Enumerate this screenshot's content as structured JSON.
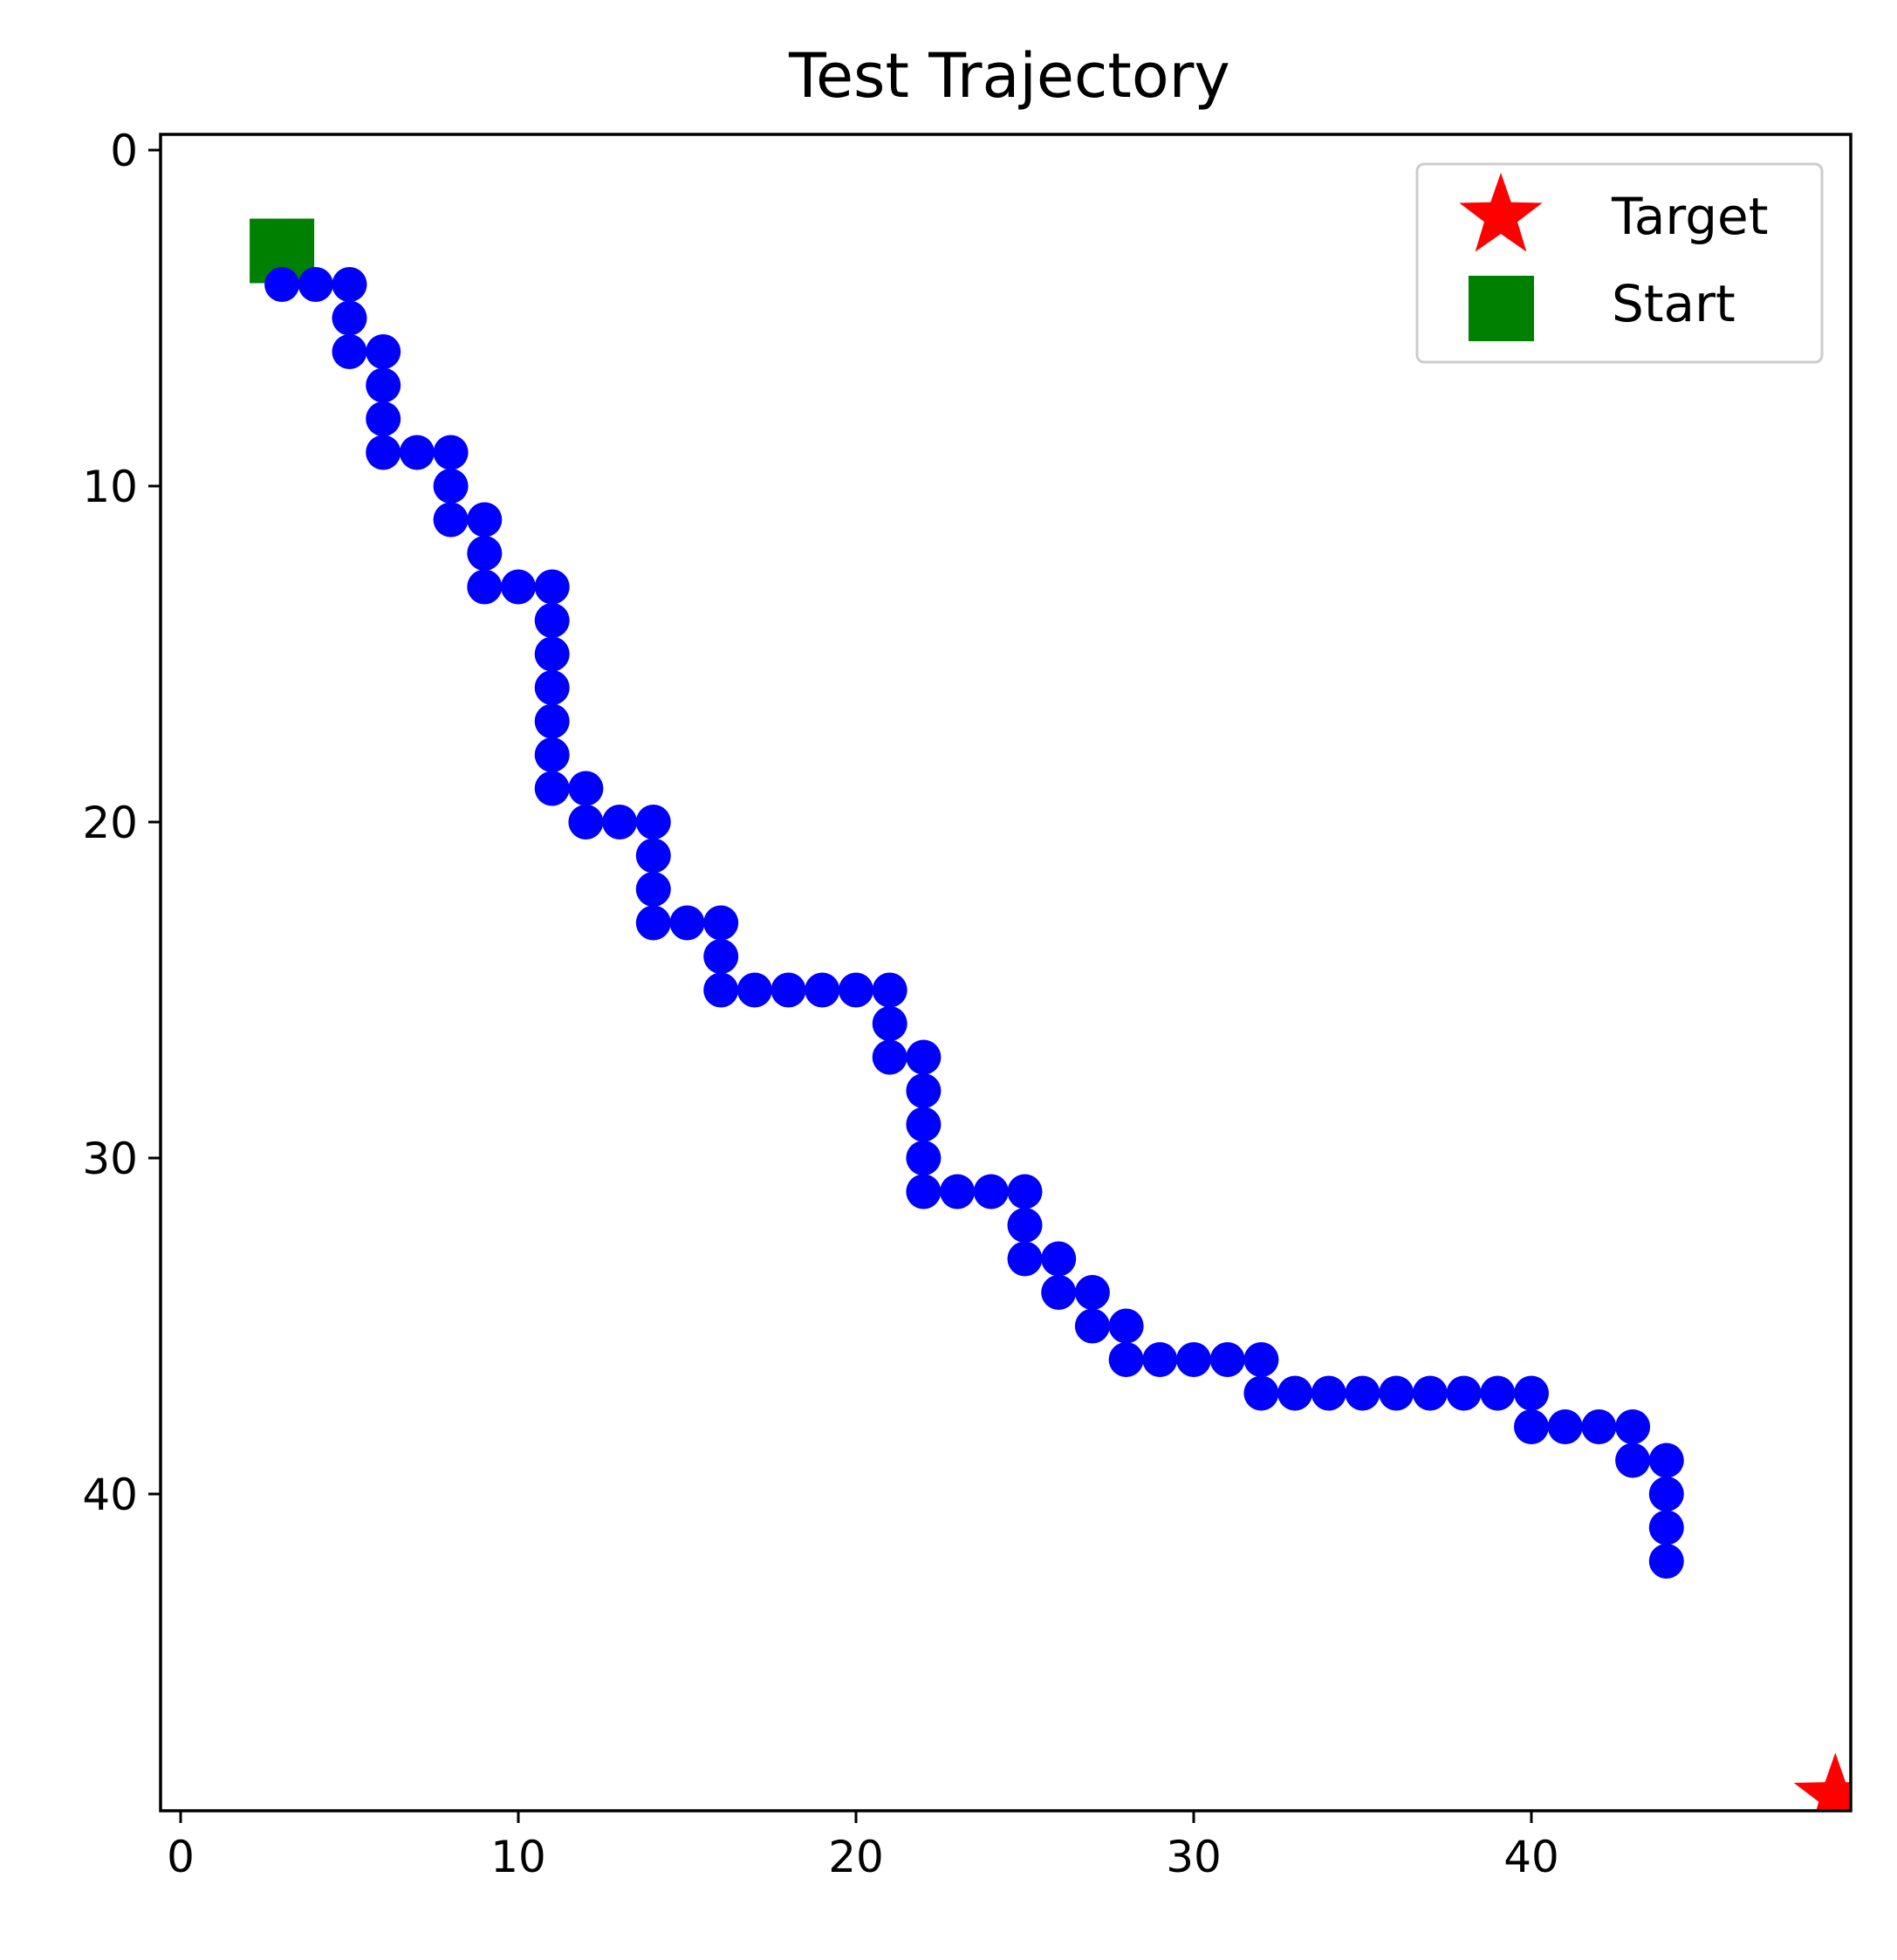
{
  "chart_data": {
    "type": "scatter",
    "title": "Test Trajectory",
    "xlabel": "",
    "ylabel": "",
    "xlim": [
      -0.5,
      49.5
    ],
    "ylim": [
      49.5,
      -0.5
    ],
    "y_inverted": true,
    "grid": false,
    "x_ticks": [
      0,
      10,
      20,
      30,
      40
    ],
    "y_ticks": [
      0,
      10,
      20,
      30,
      40
    ],
    "legend_position": "top-right",
    "series": [
      {
        "marker": "circle",
        "color": "#0000ff",
        "x": [
          3,
          4,
          5,
          5,
          5,
          6,
          6,
          6,
          6,
          7,
          8,
          8,
          8,
          9,
          9,
          9,
          10,
          11,
          11,
          11,
          11,
          11,
          11,
          11,
          12,
          12,
          13,
          14,
          14,
          14,
          14,
          15,
          16,
          16,
          16,
          17,
          18,
          19,
          20,
          21,
          21,
          21,
          22,
          22,
          22,
          22,
          22,
          23,
          24,
          25,
          25,
          25,
          26,
          26,
          27,
          27,
          28,
          28,
          29,
          30,
          31,
          32,
          32,
          33,
          34,
          35,
          36,
          37,
          38,
          39,
          40,
          40,
          41,
          42,
          43,
          43,
          44,
          44,
          44,
          44
        ],
        "y": [
          4,
          4,
          4,
          5,
          6,
          6,
          7,
          8,
          9,
          9,
          9,
          10,
          11,
          11,
          12,
          13,
          13,
          13,
          14,
          15,
          16,
          17,
          18,
          19,
          19,
          20,
          20,
          20,
          21,
          22,
          23,
          23,
          23,
          24,
          25,
          25,
          25,
          25,
          25,
          25,
          26,
          27,
          27,
          28,
          29,
          30,
          31,
          31,
          31,
          31,
          32,
          33,
          33,
          34,
          34,
          35,
          35,
          36,
          36,
          36,
          36,
          36,
          37,
          37,
          37,
          37,
          37,
          37,
          37,
          37,
          37,
          38,
          38,
          38,
          38,
          39,
          39,
          40,
          41,
          42
        ]
      },
      {
        "name": "Start",
        "marker": "square",
        "color": "#008000",
        "x": [
          3
        ],
        "y": [
          3
        ]
      },
      {
        "name": "Target",
        "marker": "star",
        "color": "#ff0000",
        "x": [
          49
        ],
        "y": [
          49
        ]
      }
    ]
  }
}
